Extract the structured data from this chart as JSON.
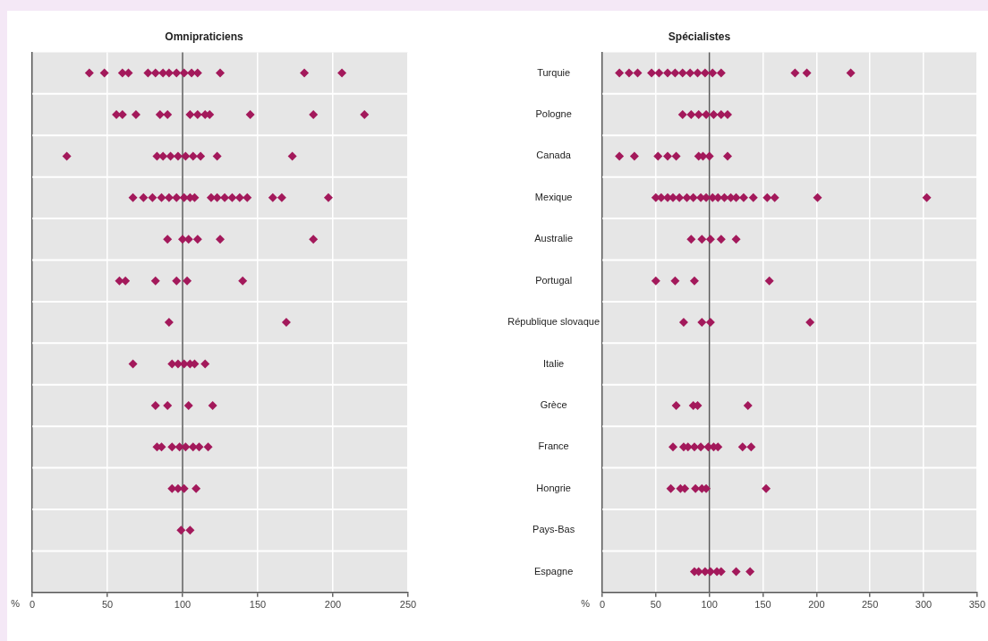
{
  "chart_data": [
    {
      "type": "scatter",
      "title": "Omnipraticiens",
      "xlabel": "%",
      "orientation": "horizontal",
      "marker": "diamond",
      "grid": true,
      "tick_labels": "x",
      "categories": [
        "Turquie",
        "Pologne",
        "Canada",
        "Mexique",
        "Australie",
        "Portugal",
        "République slovaque",
        "Italie",
        "Grèce",
        "France",
        "Hongrie",
        "Pays-Bas",
        "Espagne"
      ],
      "xlim": [
        0,
        250
      ],
      "xticks": [
        0,
        50,
        100,
        150,
        200,
        250
      ],
      "ref_lines": [
        {
          "axis": "x",
          "value": 100,
          "color": "#5a5a5a"
        }
      ],
      "series": [
        {
          "color": "#a3195b",
          "x": [
            "Turquie",
            "Turquie",
            "Turquie",
            "Turquie",
            "Turquie",
            "Turquie",
            "Turquie",
            "Turquie",
            "Turquie",
            "Turquie",
            "Turquie",
            "Turquie",
            "Turquie",
            "Turquie",
            "Turquie"
          ],
          "values": [
            38,
            48,
            60,
            64,
            77,
            82,
            87,
            91,
            96,
            101,
            106,
            110,
            125,
            181,
            206
          ]
        },
        {
          "color": "#a3195b",
          "x": [
            "Pologne",
            "Pologne",
            "Pologne",
            "Pologne",
            "Pologne",
            "Pologne",
            "Pologne",
            "Pologne",
            "Pologne",
            "Pologne",
            "Pologne",
            "Pologne"
          ],
          "values": [
            56,
            60,
            69,
            85,
            90,
            105,
            110,
            115,
            118,
            145,
            187,
            221
          ]
        },
        {
          "color": "#a3195b",
          "x": [
            "Canada",
            "Canada",
            "Canada",
            "Canada",
            "Canada",
            "Canada",
            "Canada",
            "Canada",
            "Canada",
            "Canada"
          ],
          "values": [
            23,
            83,
            87,
            92,
            97,
            102,
            107,
            112,
            123,
            173
          ]
        },
        {
          "color": "#a3195b",
          "x": [
            "Mexique",
            "Mexique",
            "Mexique",
            "Mexique",
            "Mexique",
            "Mexique",
            "Mexique",
            "Mexique",
            "Mexique",
            "Mexique",
            "Mexique",
            "Mexique",
            "Mexique",
            "Mexique",
            "Mexique",
            "Mexique",
            "Mexique",
            "Mexique"
          ],
          "values": [
            67,
            74,
            80,
            86,
            91,
            96,
            101,
            105,
            108,
            119,
            123,
            128,
            133,
            138,
            143,
            160,
            166,
            197
          ]
        },
        {
          "color": "#a3195b",
          "x": [
            "Australie",
            "Australie",
            "Australie",
            "Australie",
            "Australie",
            "Australie"
          ],
          "values": [
            90,
            100,
            104,
            110,
            125,
            187
          ]
        },
        {
          "color": "#a3195b",
          "x": [
            "Portugal",
            "Portugal",
            "Portugal",
            "Portugal",
            "Portugal",
            "Portugal"
          ],
          "values": [
            58,
            62,
            82,
            96,
            103,
            140
          ]
        },
        {
          "color": "#a3195b",
          "x": [
            "République slovaque",
            "République slovaque"
          ],
          "values": [
            91,
            169
          ]
        },
        {
          "color": "#a3195b",
          "x": [
            "Italie",
            "Italie",
            "Italie",
            "Italie",
            "Italie",
            "Italie",
            "Italie"
          ],
          "values": [
            67,
            93,
            97,
            101,
            105,
            108,
            115
          ]
        },
        {
          "color": "#a3195b",
          "x": [
            "Grèce",
            "Grèce",
            "Grèce",
            "Grèce"
          ],
          "values": [
            82,
            90,
            104,
            120
          ]
        },
        {
          "color": "#a3195b",
          "x": [
            "France",
            "France",
            "France",
            "France",
            "France",
            "France",
            "France",
            "France"
          ],
          "values": [
            83,
            86,
            93,
            98,
            102,
            107,
            111,
            117
          ]
        },
        {
          "color": "#a3195b",
          "x": [
            "Hongrie",
            "Hongrie",
            "Hongrie",
            "Hongrie"
          ],
          "values": [
            93,
            97,
            101,
            109
          ]
        },
        {
          "color": "#a3195b",
          "x": [
            "Pays-Bas",
            "Pays-Bas"
          ],
          "values": [
            99,
            105
          ]
        }
      ]
    },
    {
      "type": "scatter",
      "title": "Spécialistes",
      "xlabel": "%",
      "orientation": "horizontal",
      "marker": "diamond",
      "grid": true,
      "categories": [
        "Turquie",
        "Pologne",
        "Canada",
        "Mexique",
        "Australie",
        "Portugal",
        "République slovaque",
        "Italie",
        "Grèce",
        "France",
        "Hongrie",
        "Pays-Bas",
        "Espagne"
      ],
      "xlim": [
        0,
        350
      ],
      "xticks": [
        0,
        50,
        100,
        150,
        200,
        250,
        300,
        350
      ],
      "ref_lines": [
        {
          "axis": "x",
          "value": 100,
          "color": "#5a5a5a"
        }
      ],
      "series": [
        {
          "color": "#a3195b",
          "x": [
            "Turquie",
            "Turquie",
            "Turquie",
            "Turquie",
            "Turquie",
            "Turquie",
            "Turquie",
            "Turquie",
            "Turquie",
            "Turquie",
            "Turquie",
            "Turquie",
            "Turquie",
            "Turquie",
            "Turquie",
            "Turquie"
          ],
          "values": [
            16,
            25,
            33,
            46,
            53,
            61,
            68,
            75,
            82,
            89,
            96,
            103,
            111,
            180,
            191,
            232
          ]
        },
        {
          "color": "#a3195b",
          "x": [
            "Pologne",
            "Pologne",
            "Pologne",
            "Pologne",
            "Pologne",
            "Pologne",
            "Pologne"
          ],
          "values": [
            75,
            83,
            90,
            97,
            104,
            111,
            117
          ]
        },
        {
          "color": "#a3195b",
          "x": [
            "Canada",
            "Canada",
            "Canada",
            "Canada",
            "Canada",
            "Canada",
            "Canada",
            "Canada",
            "Canada"
          ],
          "values": [
            16,
            30,
            52,
            61,
            69,
            90,
            94,
            100,
            117
          ]
        },
        {
          "color": "#a3195b",
          "x": [
            "Mexique",
            "Mexique",
            "Mexique",
            "Mexique",
            "Mexique",
            "Mexique",
            "Mexique",
            "Mexique",
            "Mexique",
            "Mexique",
            "Mexique",
            "Mexique",
            "Mexique",
            "Mexique",
            "Mexique",
            "Mexique",
            "Mexique",
            "Mexique",
            "Mexique",
            "Mexique"
          ],
          "values": [
            50,
            55,
            61,
            66,
            72,
            79,
            85,
            92,
            97,
            103,
            108,
            114,
            120,
            125,
            132,
            141,
            154,
            161,
            201,
            303
          ]
        },
        {
          "color": "#a3195b",
          "x": [
            "Australie",
            "Australie",
            "Australie",
            "Australie",
            "Australie"
          ],
          "values": [
            83,
            93,
            101,
            111,
            125
          ]
        },
        {
          "color": "#a3195b",
          "x": [
            "Portugal",
            "Portugal",
            "Portugal",
            "Portugal"
          ],
          "values": [
            50,
            68,
            86,
            156
          ]
        },
        {
          "color": "#a3195b",
          "x": [
            "République slovaque",
            "République slovaque",
            "République slovaque",
            "République slovaque"
          ],
          "values": [
            76,
            93,
            101,
            194
          ]
        },
        {
          "color": "#a3195b",
          "x": [
            "Grèce",
            "Grèce",
            "Grèce",
            "Grèce"
          ],
          "values": [
            69,
            85,
            89,
            136
          ]
        },
        {
          "color": "#a3195b",
          "x": [
            "France",
            "France",
            "France",
            "France",
            "France",
            "France",
            "France",
            "France",
            "France",
            "France"
          ],
          "values": [
            66,
            76,
            80,
            86,
            92,
            99,
            104,
            108,
            131,
            139
          ]
        },
        {
          "color": "#a3195b",
          "x": [
            "Hongrie",
            "Hongrie",
            "Hongrie",
            "Hongrie",
            "Hongrie",
            "Hongrie",
            "Hongrie"
          ],
          "values": [
            64,
            73,
            77,
            87,
            93,
            97,
            153
          ]
        },
        {
          "color": "#a3195b",
          "x": [
            "Espagne",
            "Espagne",
            "Espagne",
            "Espagne",
            "Espagne",
            "Espagne",
            "Espagne",
            "Espagne"
          ],
          "values": [
            86,
            90,
            96,
            101,
            107,
            111,
            125,
            138
          ]
        }
      ]
    }
  ]
}
